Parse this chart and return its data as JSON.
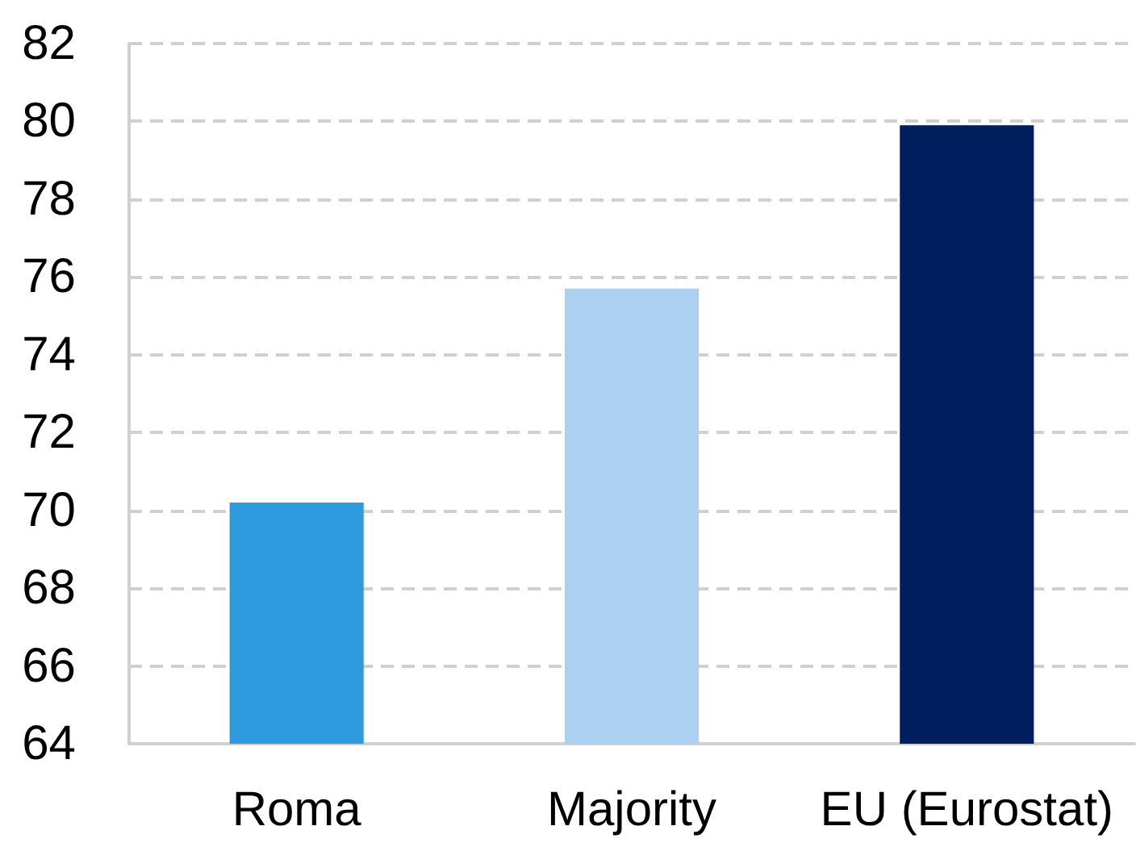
{
  "chart_data": {
    "type": "bar",
    "categories": [
      "Roma",
      "Majority",
      "EU (Eurostat)"
    ],
    "values": [
      70.2,
      75.7,
      79.9
    ],
    "colors": [
      "#2d9ade",
      "#abd0f0",
      "#011f5e"
    ],
    "ylim": [
      64,
      82
    ],
    "yticks": [
      64,
      66,
      68,
      70,
      72,
      74,
      76,
      78,
      80,
      82
    ],
    "grid": "y"
  }
}
